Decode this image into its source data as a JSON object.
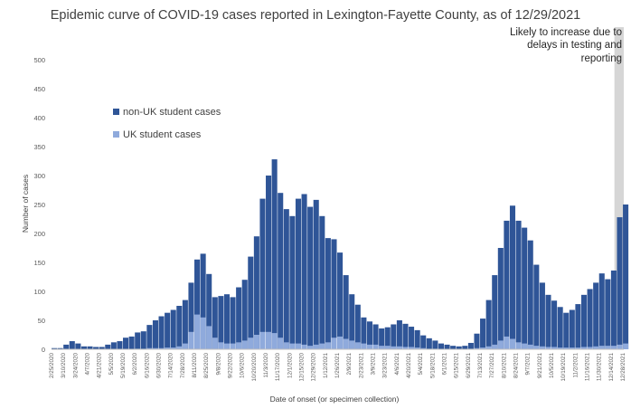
{
  "chart_data": {
    "type": "bar",
    "stacked": true,
    "title": "Epidemic curve of COVID-19 cases reported in Lexington-Fayette County, as of 12/29/2021",
    "xlabel": "Date of onset (or specimen collection)",
    "ylabel": "Number of cases",
    "ylim": [
      0,
      500
    ],
    "yticks": [
      0,
      50,
      100,
      150,
      200,
      250,
      300,
      350,
      400,
      450,
      500
    ],
    "grid": false,
    "legend_position": "upper-left",
    "annotation": {
      "lines": [
        "Likely to increase due to",
        "delays in testing and",
        "reporting"
      ],
      "shaded_range": [
        "12/18/2021",
        "12/29/2021"
      ]
    },
    "date_range": [
      "2/25/2020",
      "12/29/2021"
    ],
    "xtick_labels": [
      "2/25/2020",
      "3/10/2020",
      "3/24/2020",
      "4/7/2020",
      "4/21/2020",
      "5/5/2020",
      "5/19/2020",
      "6/2/2020",
      "6/16/2020",
      "6/30/2020",
      "7/14/2020",
      "7/28/2020",
      "8/11/2020",
      "8/25/2020",
      "9/8/2020",
      "9/22/2020",
      "10/6/2020",
      "10/20/2020",
      "11/3/2020",
      "11/17/2020",
      "12/1/2020",
      "12/15/2020",
      "12/29/2020",
      "1/12/2021",
      "1/26/2021",
      "2/9/2021",
      "2/23/2021",
      "3/9/2021",
      "3/23/2021",
      "4/6/2021",
      "4/20/2021",
      "5/4/2021",
      "5/18/2021",
      "6/1/2021",
      "6/15/2021",
      "6/29/2021",
      "7/13/2021",
      "7/27/2021",
      "8/10/2021",
      "8/24/2021",
      "9/7/2021",
      "9/21/2021",
      "10/5/2021",
      "10/19/2021",
      "11/2/2021",
      "11/16/2021",
      "11/30/2021",
      "12/14/2021",
      "12/28/2021"
    ],
    "weekly_start": [
      "2/25/2020",
      "3/3/2020",
      "3/10/2020",
      "3/17/2020",
      "3/24/2020",
      "3/31/2020",
      "4/7/2020",
      "4/14/2020",
      "4/21/2020",
      "4/28/2020",
      "5/5/2020",
      "5/12/2020",
      "5/19/2020",
      "5/26/2020",
      "6/2/2020",
      "6/9/2020",
      "6/16/2020",
      "6/23/2020",
      "6/30/2020",
      "7/7/2020",
      "7/14/2020",
      "7/21/2020",
      "7/28/2020",
      "8/4/2020",
      "8/11/2020",
      "8/18/2020",
      "8/25/2020",
      "9/1/2020",
      "9/8/2020",
      "9/15/2020",
      "9/22/2020",
      "9/29/2020",
      "10/6/2020",
      "10/13/2020",
      "10/20/2020",
      "10/27/2020",
      "11/3/2020",
      "11/10/2020",
      "11/17/2020",
      "11/24/2020",
      "12/1/2020",
      "12/8/2020",
      "12/15/2020",
      "12/22/2020",
      "12/29/2020",
      "1/5/2021",
      "1/12/2021",
      "1/19/2021",
      "1/26/2021",
      "2/2/2021",
      "2/9/2021",
      "2/16/2021",
      "2/23/2021",
      "3/2/2021",
      "3/9/2021",
      "3/16/2021",
      "3/23/2021",
      "3/30/2021",
      "4/6/2021",
      "4/13/2021",
      "4/20/2021",
      "4/27/2021",
      "5/4/2021",
      "5/11/2021",
      "5/18/2021",
      "5/25/2021",
      "6/1/2021",
      "6/8/2021",
      "6/15/2021",
      "6/22/2021",
      "6/29/2021",
      "7/6/2021",
      "7/13/2021",
      "7/20/2021",
      "7/27/2021",
      "8/3/2021",
      "8/10/2021",
      "8/17/2021",
      "8/24/2021",
      "8/31/2021",
      "9/7/2021",
      "9/14/2021",
      "9/21/2021",
      "9/28/2021",
      "10/5/2021",
      "10/12/2021",
      "10/19/2021",
      "10/26/2021",
      "11/2/2021",
      "11/9/2021",
      "11/16/2021",
      "11/23/2021",
      "11/30/2021",
      "12/7/2021",
      "12/14/2021",
      "12/21/2021",
      "12/28/2021"
    ],
    "series": [
      {
        "name": "non-UK student cases",
        "color": "#2f5597",
        "values": [
          2,
          2,
          8,
          14,
          10,
          5,
          5,
          4,
          4,
          8,
          12,
          14,
          20,
          22,
          28,
          30,
          40,
          48,
          55,
          60,
          65,
          70,
          75,
          85,
          95,
          110,
          90,
          70,
          80,
          85,
          80,
          95,
          105,
          140,
          170,
          230,
          270,
          300,
          250,
          230,
          220,
          250,
          260,
          240,
          250,
          220,
          180,
          170,
          145,
          110,
          80,
          65,
          45,
          40,
          35,
          30,
          32,
          38,
          45,
          40,
          35,
          30,
          22,
          18,
          14,
          10,
          8,
          6,
          5,
          6,
          10,
          25,
          50,
          80,
          120,
          160,
          200,
          230,
          210,
          200,
          180,
          140,
          110,
          90,
          80,
          70,
          60,
          65,
          75,
          90,
          100,
          110,
          125,
          115,
          130,
          220,
          240
        ]
      },
      {
        "name": "UK student cases",
        "color": "#8faadc",
        "values": [
          0,
          0,
          0,
          0,
          0,
          0,
          0,
          0,
          0,
          0,
          0,
          0,
          0,
          0,
          1,
          1,
          2,
          2,
          2,
          3,
          3,
          5,
          10,
          30,
          60,
          55,
          40,
          20,
          12,
          10,
          10,
          12,
          15,
          20,
          25,
          30,
          30,
          28,
          20,
          12,
          10,
          10,
          8,
          6,
          8,
          10,
          12,
          20,
          22,
          18,
          15,
          12,
          10,
          8,
          8,
          6,
          6,
          5,
          5,
          4,
          4,
          3,
          2,
          1,
          1,
          0,
          0,
          0,
          0,
          0,
          1,
          2,
          3,
          5,
          8,
          15,
          22,
          18,
          12,
          10,
          8,
          6,
          5,
          4,
          4,
          3,
          3,
          3,
          3,
          4,
          4,
          5,
          6,
          6,
          6,
          8,
          10
        ]
      }
    ]
  }
}
